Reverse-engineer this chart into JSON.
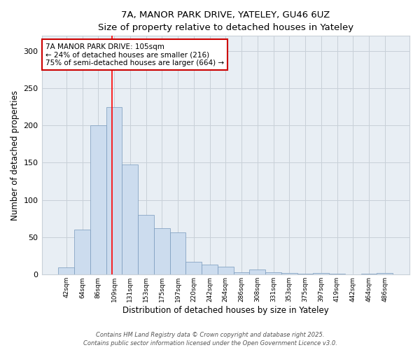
{
  "title1": "7A, MANOR PARK DRIVE, YATELEY, GU46 6UZ",
  "title2": "Size of property relative to detached houses in Yateley",
  "xlabel": "Distribution of detached houses by size in Yateley",
  "ylabel": "Number of detached properties",
  "categories": [
    "42sqm",
    "64sqm",
    "86sqm",
    "109sqm",
    "131sqm",
    "153sqm",
    "175sqm",
    "197sqm",
    "220sqm",
    "242sqm",
    "264sqm",
    "286sqm",
    "308sqm",
    "331sqm",
    "353sqm",
    "375sqm",
    "397sqm",
    "419sqm",
    "442sqm",
    "464sqm",
    "486sqm"
  ],
  "values": [
    10,
    60,
    200,
    225,
    148,
    80,
    62,
    57,
    17,
    13,
    11,
    3,
    7,
    3,
    2,
    1,
    2,
    1,
    0,
    1,
    2
  ],
  "bar_color": "#ccdcee",
  "bar_edge_color": "#7799bb",
  "red_line_x": 2.85,
  "annotation_text": "7A MANOR PARK DRIVE: 105sqm\n← 24% of detached houses are smaller (216)\n75% of semi-detached houses are larger (664) →",
  "annotation_box_color": "#ffffff",
  "annotation_box_edge": "#cc0000",
  "footer1": "Contains HM Land Registry data © Crown copyright and database right 2025.",
  "footer2": "Contains public sector information licensed under the Open Government Licence v3.0.",
  "ylim": [
    0,
    320
  ],
  "yticks": [
    0,
    50,
    100,
    150,
    200,
    250,
    300
  ],
  "bg_color": "#ffffff",
  "plot_bg_color": "#e8eef4",
  "grid_color": "#c8d0d8"
}
